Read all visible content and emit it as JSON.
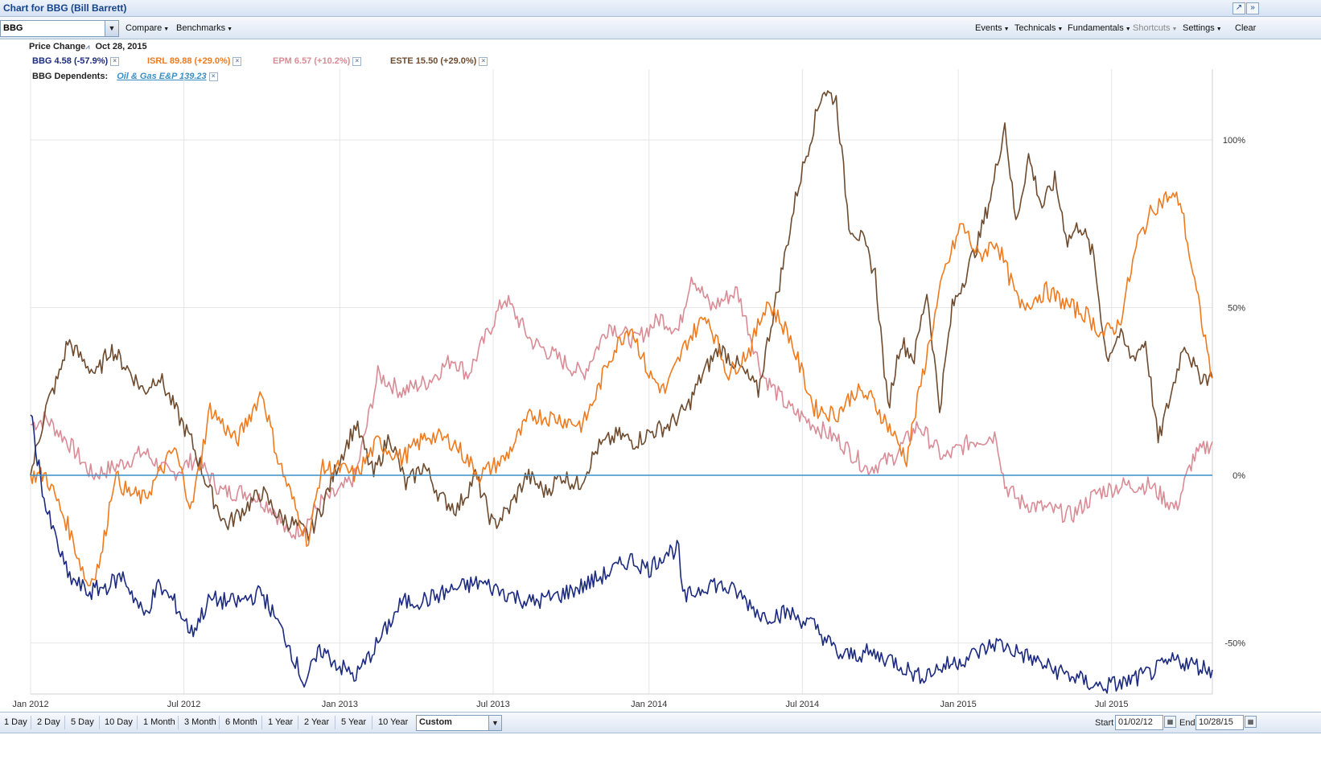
{
  "window": {
    "title": "Chart for BBG (Bill Barrett)"
  },
  "toolbar": {
    "symbol_value": "BBG",
    "menus_left": [
      "Compare",
      "Benchmarks"
    ],
    "menus_right": [
      "Events",
      "Technicals",
      "Fundamentals",
      "Shortcuts",
      "Settings"
    ],
    "clear_label": "Clear"
  },
  "header": {
    "price_change_label": "Price Change",
    "date": "Oct 28, 2015",
    "dependents_label": "BBG Dependents:",
    "dependent_link": "Oil & Gas E&P 139.23"
  },
  "legend": [
    {
      "label": "BBG 4.58 (-57.9%)",
      "color": "#1c2a80"
    },
    {
      "label": "ISRL 89.88 (+29.0%)",
      "color": "#f07a1e"
    },
    {
      "label": "EPM 6.57 (+10.2%)",
      "color": "#d98c96"
    },
    {
      "label": "ESTE 15.50 (+29.0%)",
      "color": "#6e4b2e"
    }
  ],
  "chart_data": {
    "type": "line",
    "x_ticks": [
      "Jan 2012",
      "Jul 2012",
      "Jan 2013",
      "Jul 2013",
      "Jan 2014",
      "Jul 2014",
      "Jan 2015",
      "Jul 2015"
    ],
    "y_ticks": [
      "100%",
      "50%",
      "0%",
      "-50%"
    ],
    "ylim": [
      -65,
      115
    ],
    "baseline_color": "#3a8fc7",
    "series": [
      {
        "name": "BBG",
        "color": "#1c2a80",
        "x": [
          "2012-01-02",
          "2012-01-20",
          "2012-02-15",
          "2012-03-10",
          "2012-04-01",
          "2012-04-20",
          "2012-05-15",
          "2012-06-01",
          "2012-06-20",
          "2012-07-10",
          "2012-08-01",
          "2012-09-01",
          "2012-10-01",
          "2012-11-01",
          "2012-11-20",
          "2012-12-10",
          "2013-01-01",
          "2013-01-20",
          "2013-02-15",
          "2013-03-15",
          "2013-04-15",
          "2013-05-15",
          "2013-06-15",
          "2013-07-15",
          "2013-08-15",
          "2013-09-15",
          "2013-10-15",
          "2013-11-15",
          "2013-12-10",
          "2014-01-01",
          "2014-01-20",
          "2014-02-05",
          "2014-02-10",
          "2014-03-15",
          "2014-04-15",
          "2014-05-15",
          "2014-06-15",
          "2014-07-15",
          "2014-08-15",
          "2014-09-15",
          "2014-10-15",
          "2014-11-15",
          "2014-12-15",
          "2015-01-15",
          "2015-02-15",
          "2015-03-15",
          "2015-04-15",
          "2015-05-15",
          "2015-06-15",
          "2015-07-15",
          "2015-08-15",
          "2015-09-15",
          "2015-10-28"
        ],
        "values": [
          18,
          -10,
          -30,
          -35,
          -33,
          -30,
          -42,
          -33,
          -38,
          -47,
          -37,
          -38,
          -35,
          -50,
          -62,
          -52,
          -57,
          -60,
          -50,
          -38,
          -37,
          -34,
          -32,
          -35,
          -38,
          -36,
          -33,
          -29,
          -25,
          -28,
          -23,
          -22,
          -37,
          -32,
          -35,
          -42,
          -41,
          -45,
          -54,
          -53,
          -55,
          -60,
          -57,
          -54,
          -50,
          -53,
          -57,
          -60,
          -63,
          -62,
          -59,
          -55,
          -58
        ]
      },
      {
        "name": "ISRL",
        "color": "#f07a1e",
        "x": [
          "2012-01-02",
          "2012-01-20",
          "2012-02-15",
          "2012-03-10",
          "2012-03-25",
          "2012-04-10",
          "2012-04-25",
          "2012-05-15",
          "2012-06-01",
          "2012-06-20",
          "2012-07-10",
          "2012-08-01",
          "2012-09-01",
          "2012-10-01",
          "2012-10-20",
          "2012-11-10",
          "2012-11-25",
          "2012-12-10",
          "2013-01-01",
          "2013-01-20",
          "2013-02-15",
          "2013-03-15",
          "2013-04-15",
          "2013-05-15",
          "2013-06-15",
          "2013-07-15",
          "2013-08-15",
          "2013-09-15",
          "2013-10-15",
          "2013-11-01",
          "2013-11-15",
          "2013-12-10",
          "2014-01-01",
          "2014-01-20",
          "2014-02-15",
          "2014-03-10",
          "2014-04-05",
          "2014-05-01",
          "2014-05-20",
          "2014-06-15",
          "2014-07-15",
          "2014-08-10",
          "2014-09-01",
          "2014-09-20",
          "2014-10-10",
          "2014-11-01",
          "2014-11-20",
          "2014-12-15",
          "2015-01-05",
          "2015-01-25",
          "2015-02-15",
          "2015-03-15",
          "2015-04-15",
          "2015-05-15",
          "2015-06-01",
          "2015-06-20",
          "2015-07-10",
          "2015-08-01",
          "2015-08-20",
          "2015-09-05",
          "2015-09-20",
          "2015-10-05",
          "2015-10-28"
        ],
        "values": [
          0,
          0,
          -15,
          -33,
          -25,
          0,
          -5,
          -7,
          0,
          8,
          -10,
          20,
          10,
          25,
          5,
          -10,
          -20,
          2,
          2,
          0,
          10,
          5,
          12,
          10,
          0,
          5,
          18,
          17,
          15,
          25,
          35,
          45,
          30,
          25,
          40,
          48,
          30,
          38,
          52,
          42,
          20,
          18,
          25,
          23,
          15,
          5,
          30,
          60,
          75,
          65,
          70,
          50,
          55,
          50,
          48,
          42,
          45,
          70,
          80,
          83,
          82,
          60,
          29
        ]
      },
      {
        "name": "EPM",
        "color": "#d98c96",
        "x": [
          "2012-01-02",
          "2012-01-20",
          "2012-02-15",
          "2012-03-15",
          "2012-04-15",
          "2012-05-15",
          "2012-06-15",
          "2012-07-15",
          "2012-08-15",
          "2012-09-15",
          "2012-10-15",
          "2012-11-01",
          "2012-11-20",
          "2012-12-10",
          "2013-01-01",
          "2013-01-20",
          "2013-02-15",
          "2013-03-15",
          "2013-04-15",
          "2013-05-15",
          "2013-06-01",
          "2013-06-20",
          "2013-07-15",
          "2013-08-15",
          "2013-09-15",
          "2013-10-15",
          "2013-11-15",
          "2013-12-15",
          "2014-01-15",
          "2014-02-05",
          "2014-02-20",
          "2014-03-15",
          "2014-04-15",
          "2014-05-15",
          "2014-06-15",
          "2014-07-15",
          "2014-08-15",
          "2014-09-15",
          "2014-10-15",
          "2014-11-15",
          "2014-12-15",
          "2015-01-15",
          "2015-02-15",
          "2015-02-25",
          "2015-03-15",
          "2015-04-15",
          "2015-05-15",
          "2015-06-15",
          "2015-07-15",
          "2015-08-15",
          "2015-09-15",
          "2015-10-05",
          "2015-10-28"
        ],
        "values": [
          15,
          17,
          10,
          0,
          3,
          7,
          0,
          5,
          -5,
          -5,
          -10,
          -18,
          -15,
          -8,
          -5,
          0,
          30,
          25,
          28,
          35,
          30,
          40,
          53,
          40,
          35,
          30,
          45,
          40,
          47,
          43,
          60,
          50,
          55,
          30,
          20,
          15,
          10,
          2,
          5,
          15,
          5,
          10,
          12,
          -3,
          -8,
          -10,
          -12,
          -5,
          -3,
          -3,
          -10,
          5,
          10
        ]
      },
      {
        "name": "ESTE",
        "color": "#6e4b2e",
        "x": [
          "2012-01-02",
          "2012-01-20",
          "2012-02-05",
          "2012-02-15",
          "2012-03-01",
          "2012-03-20",
          "2012-04-05",
          "2012-04-25",
          "2012-05-15",
          "2012-06-01",
          "2012-06-20",
          "2012-07-10",
          "2012-08-01",
          "2012-08-20",
          "2012-09-10",
          "2012-10-01",
          "2012-10-20",
          "2012-11-10",
          "2012-11-25",
          "2012-12-10",
          "2013-01-01",
          "2013-01-20",
          "2013-02-10",
          "2013-03-01",
          "2013-03-20",
          "2013-04-10",
          "2013-05-01",
          "2013-05-20",
          "2013-06-10",
          "2013-07-01",
          "2013-07-20",
          "2013-08-10",
          "2013-09-01",
          "2013-09-20",
          "2013-10-10",
          "2013-11-01",
          "2013-11-25",
          "2013-12-15",
          "2014-01-05",
          "2014-01-25",
          "2014-02-15",
          "2014-03-05",
          "2014-03-25",
          "2014-04-15",
          "2014-05-01",
          "2014-05-10",
          "2014-05-25",
          "2014-06-10",
          "2014-06-25",
          "2014-07-10",
          "2014-07-25",
          "2014-08-10",
          "2014-08-25",
          "2014-09-10",
          "2014-09-25",
          "2014-10-10",
          "2014-10-25",
          "2014-11-10",
          "2014-11-25",
          "2014-12-10",
          "2014-12-25",
          "2015-01-10",
          "2015-01-25",
          "2015-02-10",
          "2015-02-25",
          "2015-03-10",
          "2015-03-25",
          "2015-04-10",
          "2015-04-25",
          "2015-05-10",
          "2015-05-25",
          "2015-06-10",
          "2015-06-25",
          "2015-07-10",
          "2015-07-25",
          "2015-08-10",
          "2015-08-25",
          "2015-09-10",
          "2015-09-25",
          "2015-10-10",
          "2015-10-28"
        ],
        "values": [
          0,
          20,
          30,
          40,
          35,
          30,
          38,
          32,
          25,
          30,
          20,
          10,
          -5,
          -15,
          -10,
          -5,
          -12,
          -15,
          -18,
          -10,
          5,
          15,
          0,
          12,
          -3,
          3,
          -7,
          -10,
          0,
          -15,
          -10,
          0,
          -5,
          0,
          -3,
          8,
          12,
          10,
          13,
          15,
          20,
          30,
          38,
          33,
          28,
          25,
          45,
          65,
          85,
          100,
          115,
          112,
          75,
          70,
          60,
          20,
          40,
          35,
          55,
          20,
          50,
          60,
          70,
          85,
          105,
          75,
          95,
          80,
          88,
          70,
          75,
          65,
          35,
          42,
          35,
          40,
          10,
          25,
          40,
          30,
          29
        ]
      }
    ]
  },
  "bottom": {
    "periods": [
      "1 Day",
      "2 Day",
      "5 Day",
      "10 Day",
      "1 Month",
      "3 Month",
      "6 Month",
      "1 Year",
      "2 Year",
      "5 Year",
      "10 Year"
    ],
    "custom_label": "Custom",
    "start_label": "Start",
    "start_value": "01/02/12",
    "end_label": "End",
    "end_value": "10/28/15"
  }
}
